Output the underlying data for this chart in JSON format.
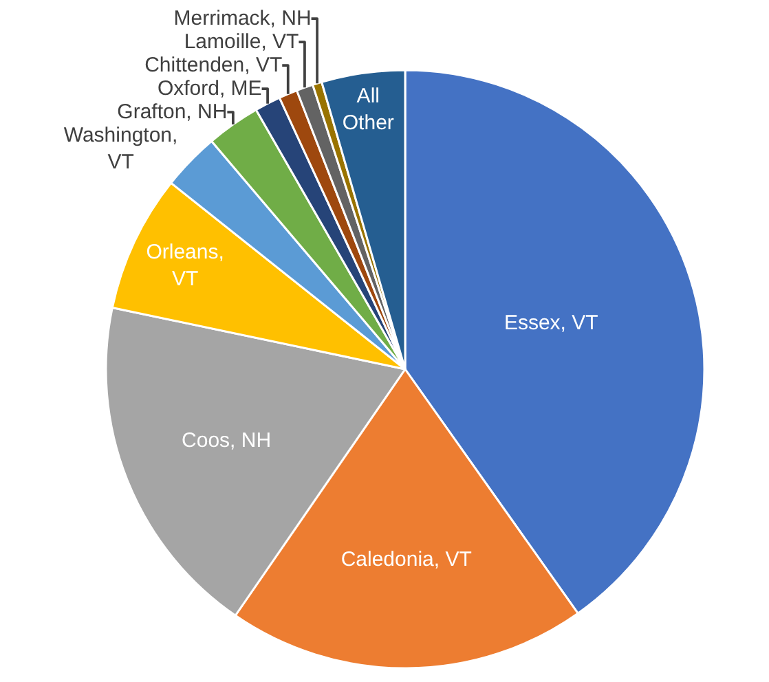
{
  "chart_data": {
    "type": "pie",
    "categories": [
      "Essex, VT",
      "Caledonia, VT",
      "Coos, NH",
      "Orleans,\nVT",
      "Washington,\nVT",
      "Grafton, NH",
      "Oxford, ME",
      "Chittenden, VT",
      "Lamoille, VT",
      "Merrimack, NH",
      "All\nOther"
    ],
    "values": [
      40.2,
      19.4,
      18.7,
      7.4,
      3.1,
      2.9,
      1.4,
      1.0,
      0.9,
      0.5,
      4.5
    ],
    "colors": [
      "#4472c4",
      "#ed7d31",
      "#a5a5a5",
      "#ffc000",
      "#5b9bd5",
      "#70ad47",
      "#264478",
      "#9e480e",
      "#636363",
      "#997300",
      "#255e91"
    ],
    "legend": false
  }
}
